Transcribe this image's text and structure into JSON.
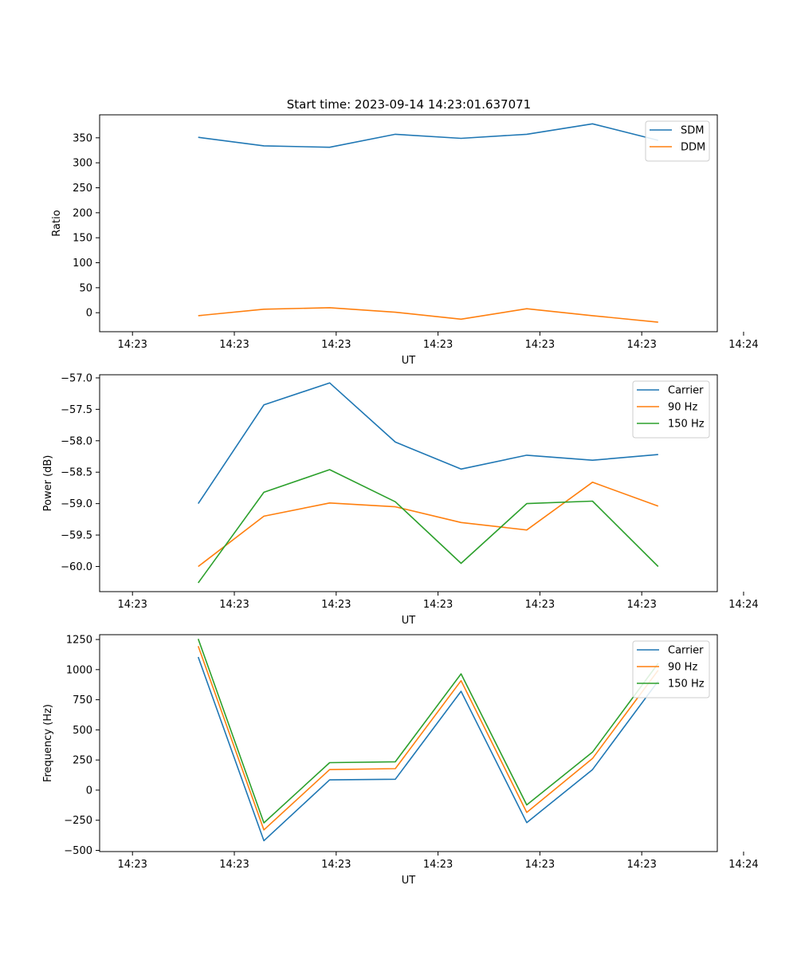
{
  "figure_title": "Start time: 2023-09-14 14:23:01.637071",
  "colors": {
    "c0": "#1f77b4",
    "c1": "#ff7f0e",
    "c2": "#2ca02c"
  },
  "chart_data": [
    {
      "type": "line",
      "title": "Start time: 2023-09-14 14:23:01.637071",
      "xlabel": "UT",
      "ylabel": "Ratio",
      "xlim": [
        -0.5,
        8.9
      ],
      "ylim": [
        -38,
        396
      ],
      "x": [
        1,
        2,
        3,
        4,
        5,
        6,
        7,
        8
      ],
      "x_ticks": [
        0,
        1.55,
        3.1,
        4.65,
        6.2,
        7.75,
        9.3
      ],
      "x_tick_labels": [
        "14:23",
        "14:23",
        "14:23",
        "14:23",
        "14:23",
        "14:23",
        "14:24"
      ],
      "y_ticks": [
        0,
        50,
        100,
        150,
        200,
        250,
        300,
        350
      ],
      "y_tick_labels": [
        "0",
        "50",
        "100",
        "150",
        "200",
        "250",
        "300",
        "350"
      ],
      "legend_position": "top-right",
      "series": [
        {
          "name": "SDM",
          "color": "#1f77b4",
          "values": [
            351,
            334,
            331,
            357,
            349,
            357,
            378,
            345
          ]
        },
        {
          "name": "DDM",
          "color": "#ff7f0e",
          "values": [
            -6,
            7,
            10,
            1,
            -13,
            8,
            -6,
            -19
          ]
        }
      ]
    },
    {
      "type": "line",
      "title": "",
      "xlabel": "UT",
      "ylabel": "Power (dB)",
      "xlim": [
        -0.5,
        8.9
      ],
      "ylim": [
        -60.4,
        -56.95
      ],
      "x": [
        1,
        2,
        3,
        4,
        5,
        6,
        7,
        8
      ],
      "x_ticks": [
        0,
        1.55,
        3.1,
        4.65,
        6.2,
        7.75,
        9.3
      ],
      "x_tick_labels": [
        "14:23",
        "14:23",
        "14:23",
        "14:23",
        "14:23",
        "14:23",
        "14:24"
      ],
      "y_ticks": [
        -57.0,
        -57.5,
        -58.0,
        -58.5,
        -59.0,
        -59.5,
        -60.0
      ],
      "y_tick_labels": [
        "−57.0",
        "−57.5",
        "−58.0",
        "−58.5",
        "−59.0",
        "−59.5",
        "−60.0"
      ],
      "legend_position": "top-right",
      "series": [
        {
          "name": "Carrier",
          "color": "#1f77b4",
          "values": [
            -59.0,
            -57.43,
            -57.08,
            -58.02,
            -58.45,
            -58.23,
            -58.31,
            -58.22
          ]
        },
        {
          "name": "90 Hz",
          "color": "#ff7f0e",
          "values": [
            -60.0,
            -59.2,
            -58.99,
            -59.05,
            -59.3,
            -59.42,
            -58.66,
            -59.04
          ]
        },
        {
          "name": "150 Hz",
          "color": "#2ca02c",
          "values": [
            -60.26,
            -58.82,
            -58.46,
            -58.97,
            -59.95,
            -59.0,
            -58.96,
            -60.0
          ]
        }
      ]
    },
    {
      "type": "line",
      "title": "",
      "xlabel": "UT",
      "ylabel": "Frequency (Hz)",
      "xlim": [
        -0.5,
        8.9
      ],
      "ylim": [
        -510,
        1290
      ],
      "x": [
        1,
        2,
        3,
        4,
        5,
        6,
        7,
        8
      ],
      "x_ticks": [
        0,
        1.55,
        3.1,
        4.65,
        6.2,
        7.75,
        9.3
      ],
      "x_tick_labels": [
        "14:23",
        "14:23",
        "14:23",
        "14:23",
        "14:23",
        "14:23",
        "14:24"
      ],
      "y_ticks": [
        -500,
        -250,
        0,
        250,
        500,
        750,
        1000,
        1250
      ],
      "y_tick_labels": [
        "−500",
        "−250",
        "0",
        "250",
        "500",
        "750",
        "1000",
        "1250"
      ],
      "legend_position": "top-right",
      "series": [
        {
          "name": "Carrier",
          "color": "#1f77b4",
          "values": [
            1105,
            -420,
            85,
            90,
            820,
            -270,
            170,
            905
          ]
        },
        {
          "name": "90 Hz",
          "color": "#ff7f0e",
          "values": [
            1195,
            -330,
            170,
            178,
            908,
            -185,
            262,
            995
          ]
        },
        {
          "name": "150 Hz",
          "color": "#2ca02c",
          "values": [
            1255,
            -272,
            228,
            235,
            965,
            -123,
            315,
            1052
          ]
        }
      ]
    }
  ]
}
